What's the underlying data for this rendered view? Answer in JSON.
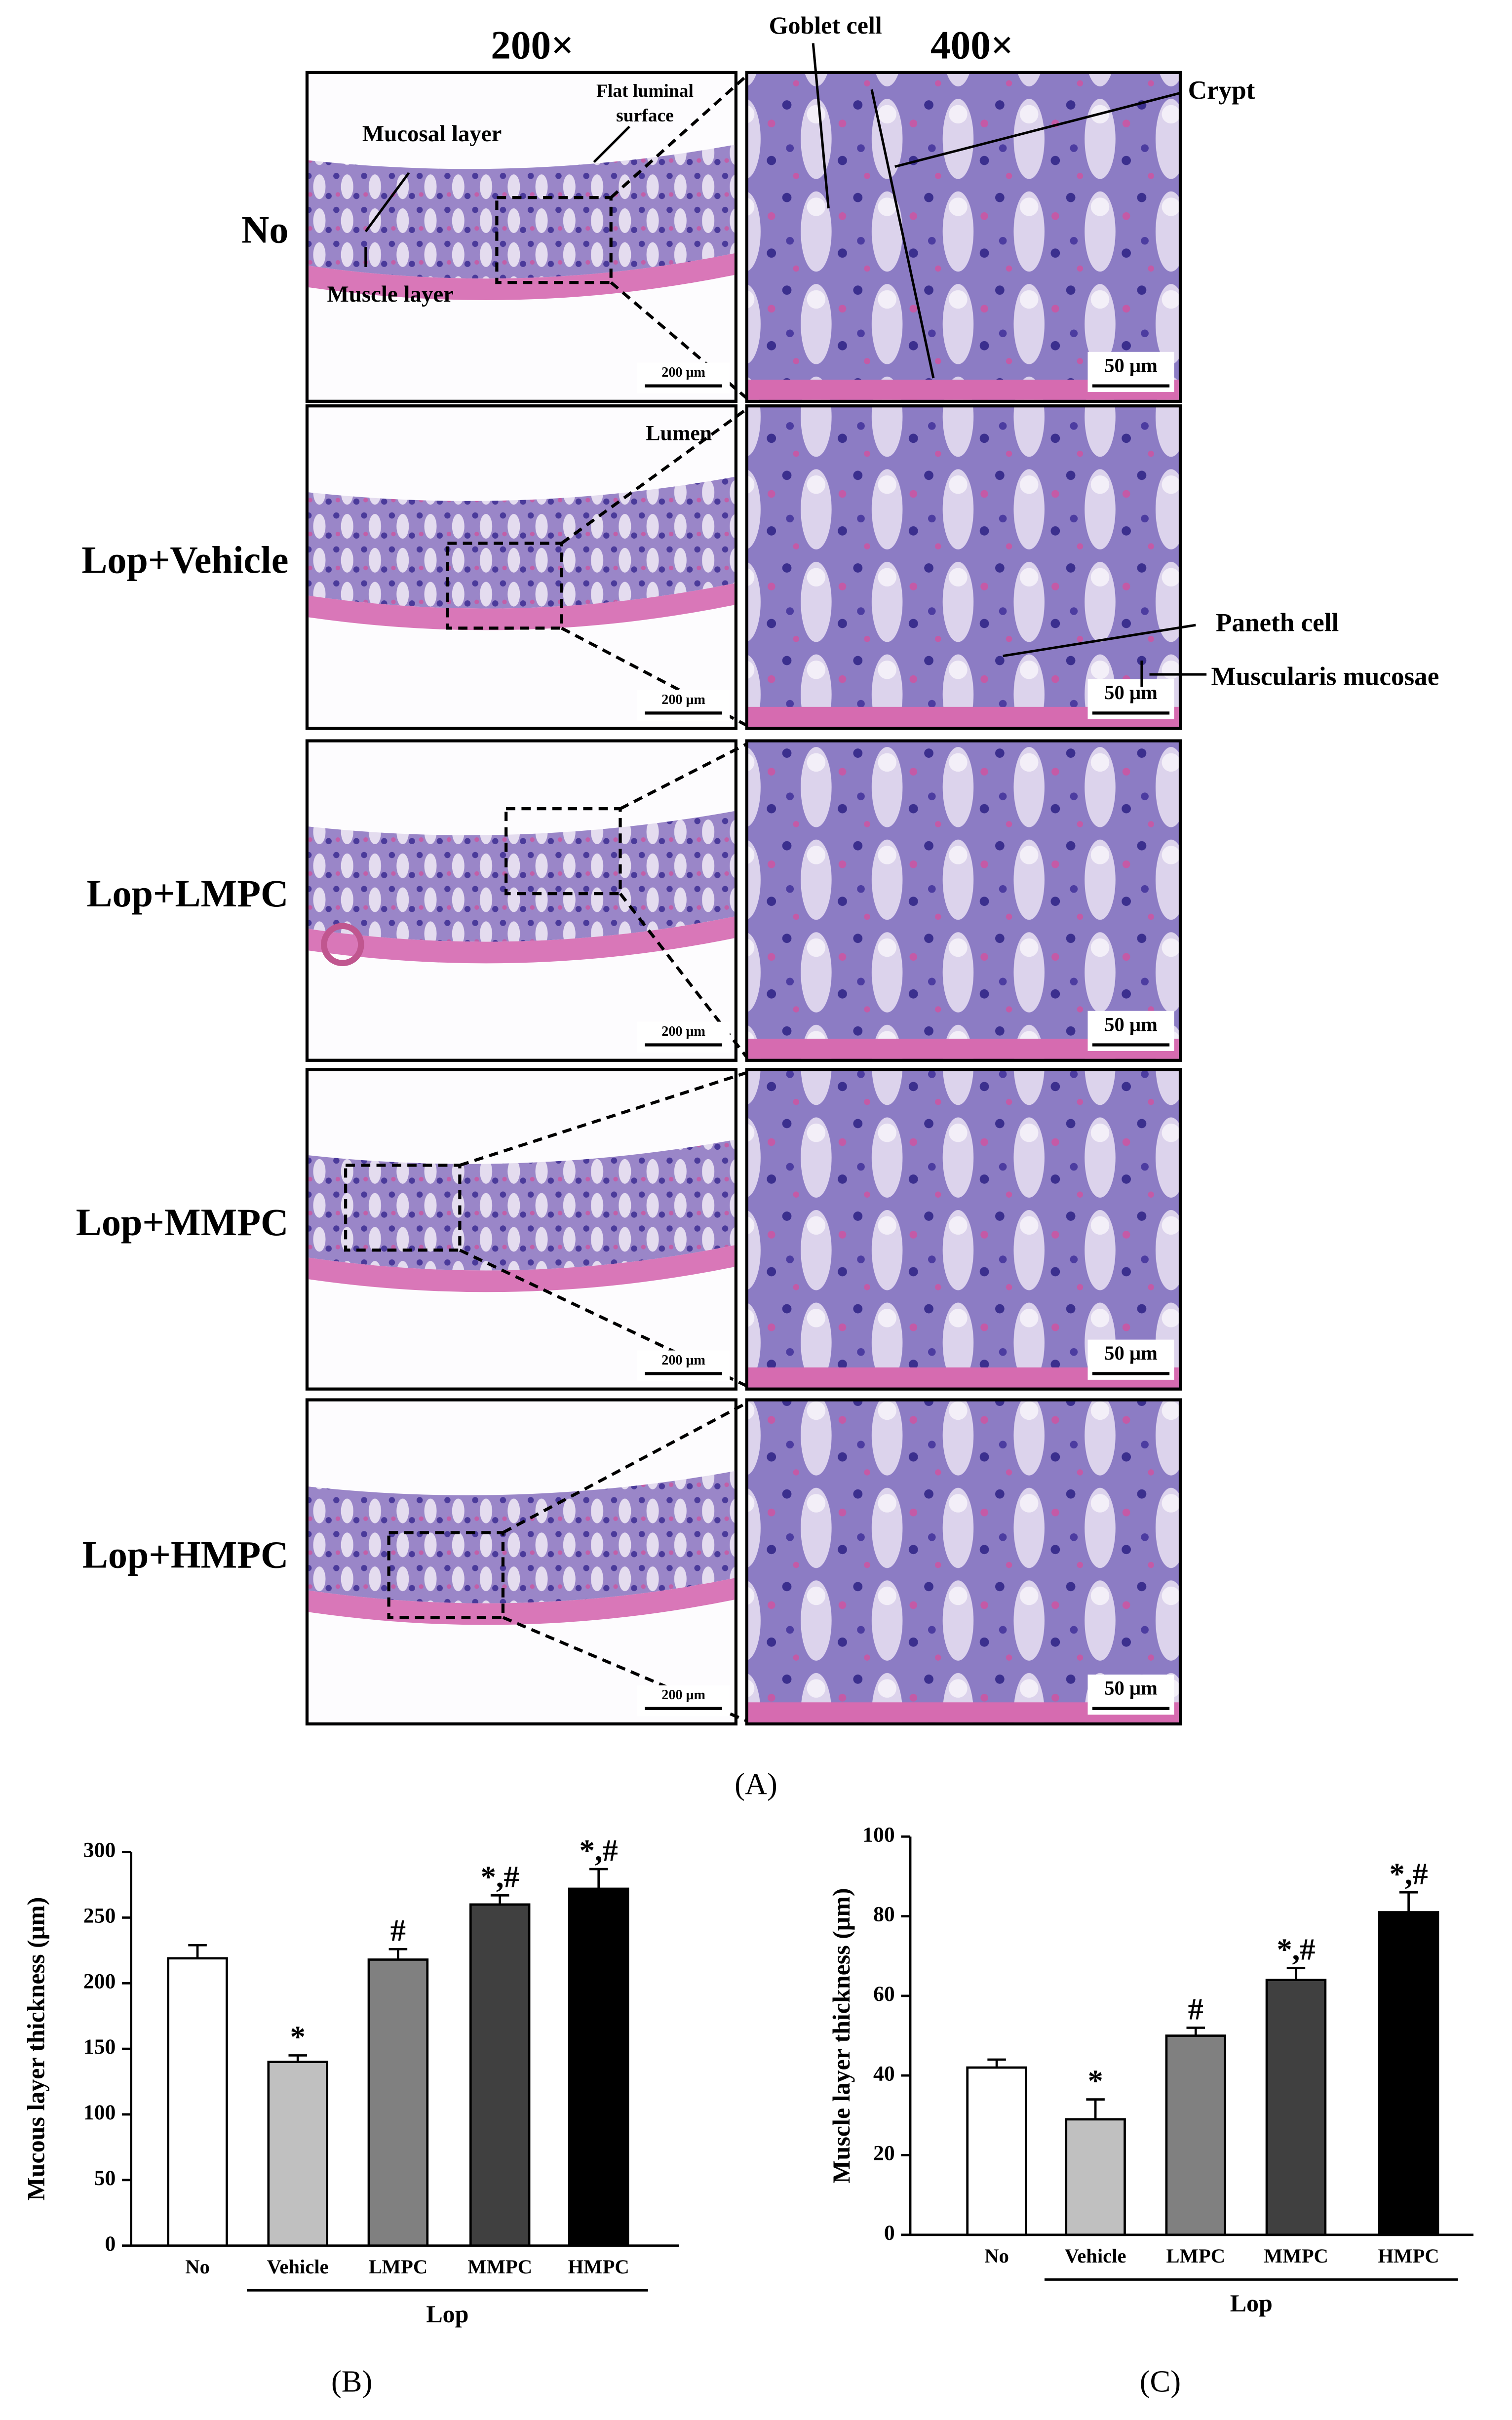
{
  "panel_a": {
    "label": "(A)",
    "column_headers": [
      "200×",
      "400×"
    ],
    "rows": [
      {
        "label": "No",
        "scale_left": "200 μm",
        "scale_right": "50 μm"
      },
      {
        "label": "Lop+Vehicle",
        "scale_left": "200 μm",
        "scale_right": "50 μm"
      },
      {
        "label": "Lop+LMPC",
        "scale_left": "200 μm",
        "scale_right": "50 μm"
      },
      {
        "label": "Lop+MMPC",
        "scale_left": "200 μm",
        "scale_right": "50 μm"
      },
      {
        "label": "Lop+HMPC",
        "scale_left": "200 μm",
        "scale_right": "50 μm"
      }
    ],
    "annotations": {
      "goblet_cell": "Goblet cell",
      "crypt": "Crypt",
      "mucosal_layer": "Mucosal layer",
      "flat_luminal_surface": [
        "Flat luminal",
        "surface"
      ],
      "muscle_layer": "Muscle layer",
      "lumen": "Lumen",
      "paneth_cell": "Paneth cell",
      "muscularis_mucosae": "Muscularis mucosae"
    }
  },
  "chart_data": [
    {
      "type": "bar",
      "label": "(B)",
      "ylabel": "Mucous layer thickness (μm)",
      "categories": [
        "No",
        "Vehicle",
        "LMPC",
        "MMPC",
        "HMPC"
      ],
      "group_label": "Lop",
      "values": [
        219,
        140,
        218,
        260,
        272
      ],
      "errors": [
        10,
        5,
        8,
        7,
        15
      ],
      "annotations": [
        null,
        "*",
        "#",
        "*,#",
        "*,#"
      ],
      "colors": [
        "#ffffff",
        "#c0c0c0",
        "#808080",
        "#404040",
        "#000000"
      ],
      "ylim": [
        0,
        300
      ],
      "yticks": [
        0,
        50,
        100,
        150,
        200,
        250,
        300
      ]
    },
    {
      "type": "bar",
      "label": "(C)",
      "ylabel": "Muscle layer thickness (μm)",
      "categories": [
        "No",
        "Vehicle",
        "LMPC",
        "MMPC",
        "HMPC"
      ],
      "group_label": "Lop",
      "values": [
        42,
        29,
        50,
        64,
        81
      ],
      "errors": [
        2,
        5,
        2,
        3,
        5
      ],
      "annotations": [
        null,
        "*",
        "#",
        "*,#",
        "*,#"
      ],
      "colors": [
        "#ffffff",
        "#c0c0c0",
        "#808080",
        "#404040",
        "#000000"
      ],
      "ylim": [
        0,
        100
      ],
      "yticks": [
        0,
        20,
        40,
        60,
        80,
        100
      ]
    }
  ]
}
